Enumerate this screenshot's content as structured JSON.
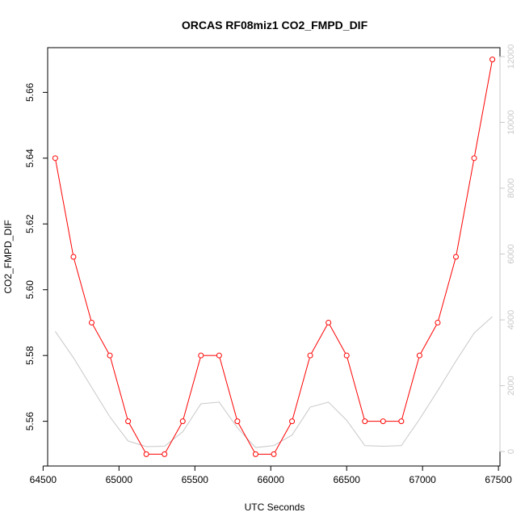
{
  "chart_data": {
    "type": "line",
    "title": "ORCAS RF08miz1 CO2_FMPD_DIF",
    "xlabel": "UTC Seconds",
    "ylabel": "CO2_FMPD_DIF",
    "xlim": [
      64530,
      67510
    ],
    "ylim": [
      5.5464,
      5.6736
    ],
    "y2lim": [
      -440,
      12270
    ],
    "x_ticks": [
      64500,
      65000,
      65500,
      66000,
      66500,
      67000,
      67500
    ],
    "y_ticks": [
      5.56,
      5.58,
      5.6,
      5.62,
      5.64,
      5.66
    ],
    "y2_ticks": [
      0,
      2000,
      4000,
      6000,
      8000,
      10000,
      12000
    ],
    "colors": {
      "primary": "#ff0000",
      "secondary": "#c8c8c8",
      "axis": "#000000"
    },
    "series": [
      {
        "axis": "left",
        "style": "line+open-circles",
        "color": "#ff0000",
        "x": [
          64580,
          64700,
          64820,
          64940,
          65060,
          65180,
          65300,
          65420,
          65540,
          65660,
          65780,
          65900,
          66020,
          66140,
          66260,
          66380,
          66500,
          66620,
          66740,
          66860,
          66980,
          67100,
          67220,
          67340,
          67460
        ],
        "y": [
          5.64,
          5.61,
          5.59,
          5.58,
          5.56,
          5.55,
          5.55,
          5.56,
          5.58,
          5.58,
          5.56,
          5.55,
          5.55,
          5.56,
          5.58,
          5.59,
          5.58,
          5.56,
          5.56,
          5.56,
          5.58,
          5.59,
          5.61,
          5.64,
          5.67
        ]
      },
      {
        "axis": "right",
        "style": "line",
        "color": "#c8c8c8",
        "x": [
          64580,
          64700,
          64820,
          64940,
          65060,
          65180,
          65300,
          65420,
          65540,
          65660,
          65780,
          65900,
          66020,
          66140,
          66260,
          66380,
          66500,
          66620,
          66740,
          66860,
          66980,
          67100,
          67220,
          67340,
          67460
        ],
        "y": [
          3650,
          2850,
          1950,
          1050,
          320,
          150,
          160,
          600,
          1450,
          1500,
          720,
          120,
          180,
          500,
          1350,
          1500,
          950,
          180,
          160,
          180,
          980,
          1850,
          2750,
          3600,
          4100
        ]
      }
    ]
  }
}
